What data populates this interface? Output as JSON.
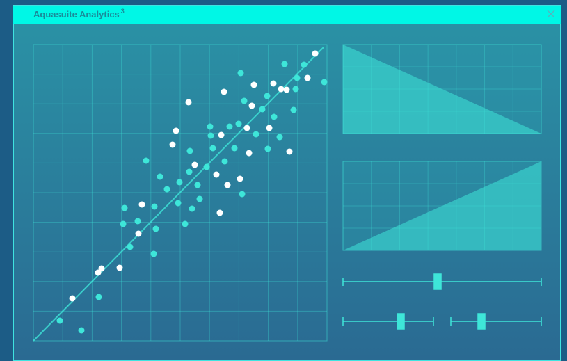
{
  "window": {
    "title": "Aquasuite Analytics",
    "title_superscript": "3"
  },
  "chart_data": {
    "type": "scatter",
    "xlim": [
      0,
      422
    ],
    "ylim": [
      0,
      426
    ],
    "series": [
      {
        "color": "#3ee6d9",
        "x": [
          298,
          361,
          389,
          379,
          418,
          377,
          336,
          303,
          329,
          374,
          346,
          295,
          282,
          254,
          320,
          354,
          289,
          258,
          225,
          337,
          275,
          249,
          224,
          162,
          182,
          210,
          192,
          236,
          300,
          208,
          174,
          239,
          131,
          150,
          129,
          176,
          218,
          228,
          139,
          173,
          94,
          38,
          69,
          255
        ],
        "values": [
          385,
          398,
          397,
          378,
          372,
          362,
          352,
          345,
          333,
          332,
          322,
          312,
          308,
          308,
          297,
          293,
          277,
          277,
          273,
          276,
          258,
          250,
          243,
          259,
          236,
          228,
          218,
          224,
          211,
          198,
          193,
          204,
          191,
          172,
          168,
          161,
          168,
          190,
          135,
          125,
          63,
          29,
          15,
          295
        ]
      },
      {
        "color": "#ffffff",
        "x": [
          405,
          394,
          364,
          356,
          345,
          317,
          314,
          274,
          223,
          205,
          200,
          270,
          307,
          339,
          310,
          368,
          232,
          263,
          279,
          297,
          268,
          156,
          151,
          124,
          98,
          93,
          56
        ],
        "values": [
          413,
          378,
          361,
          362,
          370,
          368,
          338,
          358,
          343,
          302,
          282,
          296,
          306,
          306,
          270,
          272,
          253,
          239,
          224,
          233,
          184,
          196,
          154,
          105,
          104,
          98,
          61
        ]
      }
    ]
  }
}
